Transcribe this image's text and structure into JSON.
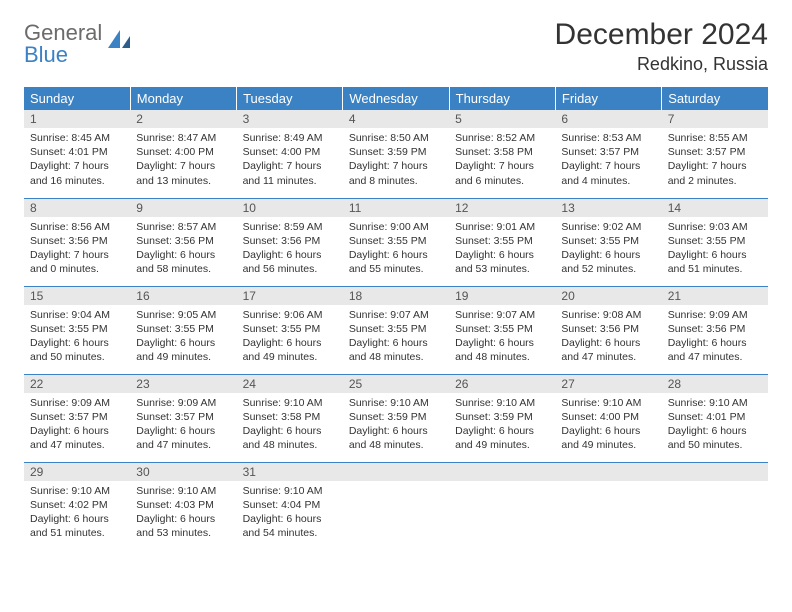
{
  "brand": {
    "name_part1": "General",
    "name_part2": "Blue",
    "icon_color": "#3b82c4"
  },
  "title": "December 2024",
  "location": "Redkino, Russia",
  "colors": {
    "header_bg": "#3b82c4",
    "header_text": "#ffffff",
    "daynum_bg": "#e8e8e8",
    "rule": "#3b82c4"
  },
  "weekdays": [
    "Sunday",
    "Monday",
    "Tuesday",
    "Wednesday",
    "Thursday",
    "Friday",
    "Saturday"
  ],
  "days": [
    {
      "n": "1",
      "sunrise": "8:45 AM",
      "sunset": "4:01 PM",
      "dh": "7",
      "dm": "16"
    },
    {
      "n": "2",
      "sunrise": "8:47 AM",
      "sunset": "4:00 PM",
      "dh": "7",
      "dm": "13"
    },
    {
      "n": "3",
      "sunrise": "8:49 AM",
      "sunset": "4:00 PM",
      "dh": "7",
      "dm": "11"
    },
    {
      "n": "4",
      "sunrise": "8:50 AM",
      "sunset": "3:59 PM",
      "dh": "7",
      "dm": "8"
    },
    {
      "n": "5",
      "sunrise": "8:52 AM",
      "sunset": "3:58 PM",
      "dh": "7",
      "dm": "6"
    },
    {
      "n": "6",
      "sunrise": "8:53 AM",
      "sunset": "3:57 PM",
      "dh": "7",
      "dm": "4"
    },
    {
      "n": "7",
      "sunrise": "8:55 AM",
      "sunset": "3:57 PM",
      "dh": "7",
      "dm": "2"
    },
    {
      "n": "8",
      "sunrise": "8:56 AM",
      "sunset": "3:56 PM",
      "dh": "7",
      "dm": "0"
    },
    {
      "n": "9",
      "sunrise": "8:57 AM",
      "sunset": "3:56 PM",
      "dh": "6",
      "dm": "58"
    },
    {
      "n": "10",
      "sunrise": "8:59 AM",
      "sunset": "3:56 PM",
      "dh": "6",
      "dm": "56"
    },
    {
      "n": "11",
      "sunrise": "9:00 AM",
      "sunset": "3:55 PM",
      "dh": "6",
      "dm": "55"
    },
    {
      "n": "12",
      "sunrise": "9:01 AM",
      "sunset": "3:55 PM",
      "dh": "6",
      "dm": "53"
    },
    {
      "n": "13",
      "sunrise": "9:02 AM",
      "sunset": "3:55 PM",
      "dh": "6",
      "dm": "52"
    },
    {
      "n": "14",
      "sunrise": "9:03 AM",
      "sunset": "3:55 PM",
      "dh": "6",
      "dm": "51"
    },
    {
      "n": "15",
      "sunrise": "9:04 AM",
      "sunset": "3:55 PM",
      "dh": "6",
      "dm": "50"
    },
    {
      "n": "16",
      "sunrise": "9:05 AM",
      "sunset": "3:55 PM",
      "dh": "6",
      "dm": "49"
    },
    {
      "n": "17",
      "sunrise": "9:06 AM",
      "sunset": "3:55 PM",
      "dh": "6",
      "dm": "49"
    },
    {
      "n": "18",
      "sunrise": "9:07 AM",
      "sunset": "3:55 PM",
      "dh": "6",
      "dm": "48"
    },
    {
      "n": "19",
      "sunrise": "9:07 AM",
      "sunset": "3:55 PM",
      "dh": "6",
      "dm": "48"
    },
    {
      "n": "20",
      "sunrise": "9:08 AM",
      "sunset": "3:56 PM",
      "dh": "6",
      "dm": "47"
    },
    {
      "n": "21",
      "sunrise": "9:09 AM",
      "sunset": "3:56 PM",
      "dh": "6",
      "dm": "47"
    },
    {
      "n": "22",
      "sunrise": "9:09 AM",
      "sunset": "3:57 PM",
      "dh": "6",
      "dm": "47"
    },
    {
      "n": "23",
      "sunrise": "9:09 AM",
      "sunset": "3:57 PM",
      "dh": "6",
      "dm": "47"
    },
    {
      "n": "24",
      "sunrise": "9:10 AM",
      "sunset": "3:58 PM",
      "dh": "6",
      "dm": "48"
    },
    {
      "n": "25",
      "sunrise": "9:10 AM",
      "sunset": "3:59 PM",
      "dh": "6",
      "dm": "48"
    },
    {
      "n": "26",
      "sunrise": "9:10 AM",
      "sunset": "3:59 PM",
      "dh": "6",
      "dm": "49"
    },
    {
      "n": "27",
      "sunrise": "9:10 AM",
      "sunset": "4:00 PM",
      "dh": "6",
      "dm": "49"
    },
    {
      "n": "28",
      "sunrise": "9:10 AM",
      "sunset": "4:01 PM",
      "dh": "6",
      "dm": "50"
    },
    {
      "n": "29",
      "sunrise": "9:10 AM",
      "sunset": "4:02 PM",
      "dh": "6",
      "dm": "51"
    },
    {
      "n": "30",
      "sunrise": "9:10 AM",
      "sunset": "4:03 PM",
      "dh": "6",
      "dm": "53"
    },
    {
      "n": "31",
      "sunrise": "9:10 AM",
      "sunset": "4:04 PM",
      "dh": "6",
      "dm": "54"
    }
  ]
}
